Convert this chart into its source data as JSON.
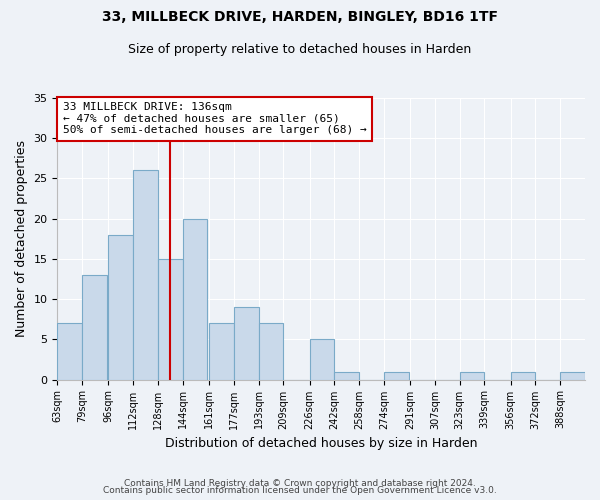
{
  "title": "33, MILLBECK DRIVE, HARDEN, BINGLEY, BD16 1TF",
  "subtitle": "Size of property relative to detached houses in Harden",
  "xlabel": "Distribution of detached houses by size in Harden",
  "ylabel": "Number of detached properties",
  "bar_color": "#c9d9ea",
  "bar_edge_color": "#7aaac8",
  "background_color": "#eef2f7",
  "grid_color": "#ffffff",
  "bin_labels": [
    "63sqm",
    "79sqm",
    "96sqm",
    "112sqm",
    "128sqm",
    "144sqm",
    "161sqm",
    "177sqm",
    "193sqm",
    "209sqm",
    "226sqm",
    "242sqm",
    "258sqm",
    "274sqm",
    "291sqm",
    "307sqm",
    "323sqm",
    "339sqm",
    "356sqm",
    "372sqm",
    "388sqm"
  ],
  "bin_edges": [
    63,
    79,
    96,
    112,
    128,
    144,
    161,
    177,
    193,
    209,
    226,
    242,
    258,
    274,
    291,
    307,
    323,
    339,
    356,
    372,
    388
  ],
  "bin_width": 16,
  "counts": [
    7,
    13,
    18,
    26,
    15,
    20,
    7,
    9,
    7,
    0,
    5,
    1,
    0,
    1,
    0,
    0,
    1,
    0,
    1,
    0,
    1
  ],
  "vline_x": 136,
  "vline_color": "#cc0000",
  "annotation_text": "33 MILLBECK DRIVE: 136sqm\n← 47% of detached houses are smaller (65)\n50% of semi-detached houses are larger (68) →",
  "annotation_box_color": "white",
  "annotation_box_edge_color": "#cc0000",
  "ylim": [
    0,
    35
  ],
  "yticks": [
    0,
    5,
    10,
    15,
    20,
    25,
    30,
    35
  ],
  "title_fontsize": 10,
  "subtitle_fontsize": 9,
  "footer_line1": "Contains HM Land Registry data © Crown copyright and database right 2024.",
  "footer_line2": "Contains public sector information licensed under the Open Government Licence v3.0."
}
